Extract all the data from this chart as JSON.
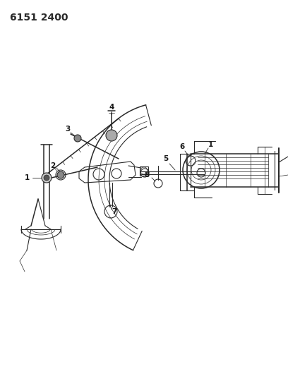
{
  "title": "6151 2400",
  "bg_color": "#ffffff",
  "line_color": "#2a2a2a",
  "label_color": "#1a1a1a",
  "label_fontsize": 7.5,
  "figsize": [
    4.08,
    5.33
  ],
  "dpi": 100,
  "xlim": [
    0,
    408
  ],
  "ylim": [
    0,
    533
  ]
}
